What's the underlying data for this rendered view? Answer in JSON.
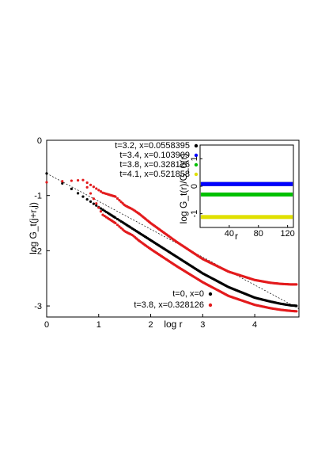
{
  "chart_data": [
    {
      "type": "scatter",
      "xlabel": "log r",
      "ylabel": "log G_t(j+r,j)",
      "xlim": [
        0,
        4.85
      ],
      "ylim": [
        -3.2,
        0
      ],
      "xticks": [
        0,
        1,
        2,
        3,
        4
      ],
      "yticks": [
        0,
        -1,
        -2,
        -3
      ],
      "legend_placement": "bottom-right",
      "series": [
        {
          "name": "t=0, x=0",
          "color": "#000000",
          "x": [
            0,
            0.301,
            0.477,
            0.602,
            0.699,
            0.778,
            0.845,
            0.903,
            0.954,
            1.0,
            1.5,
            2.0,
            2.5,
            3.0,
            3.5,
            4.0,
            4.3,
            4.5,
            4.7,
            4.85
          ],
          "y": [
            -0.6,
            -0.78,
            -0.88,
            -0.96,
            -1.02,
            -1.07,
            -1.11,
            -1.15,
            -1.18,
            -1.21,
            -1.51,
            -1.81,
            -2.11,
            -2.41,
            -2.66,
            -2.85,
            -2.92,
            -2.96,
            -2.99,
            -3.0
          ]
        },
        {
          "name": "t=3.8, x=0.328126",
          "color": "#e31a1c",
          "x": [
            0,
            0.699,
            1.079,
            1.322,
            1.505,
            1.653,
            1.778,
            2.0,
            2.5,
            3.0,
            3.5,
            4.0,
            4.3,
            4.5,
            4.7,
            4.85
          ],
          "upper_y": [
            -0.76,
            -0.72,
            -0.95,
            -1.02,
            -1.18,
            -1.25,
            -1.33,
            -1.5,
            -1.84,
            -2.15,
            -2.38,
            -2.53,
            -2.58,
            -2.6,
            -2.61,
            -2.61
          ],
          "lower_y": [
            -0.76,
            -0.72,
            -1.35,
            -1.5,
            -1.65,
            -1.72,
            -1.82,
            -1.97,
            -2.28,
            -2.57,
            -2.82,
            -2.98,
            -3.04,
            -3.07,
            -3.09,
            -3.1
          ]
        },
        {
          "name": "t=3.2, x=0.0558395",
          "color": "#000000"
        },
        {
          "name": "t=3.4, x=0.103909",
          "color": "#0000ff"
        },
        {
          "name": "t=3.8, x=0.328126",
          "color": "#00c000"
        },
        {
          "name": "t=4.1, x=0.521858",
          "color": "#e0e000"
        }
      ]
    },
    {
      "type": "line",
      "xlabel": "r",
      "ylabel": "log G_t(r)/G_0(r)",
      "xlim": [
        0,
        128
      ],
      "ylim": [
        -1.5,
        1.5
      ],
      "xticks": [
        40,
        80,
        120
      ],
      "yticks": [
        1,
        0,
        -1
      ],
      "series": [
        {
          "name": "t=3.2, x=0.0558395",
          "color": "#000000",
          "y": 0.08
        },
        {
          "name": "t=3.4, x=0.103909",
          "color": "#0000ff",
          "y": 0.08
        },
        {
          "name": "t=3.8, x=0.328126",
          "color": "#00c000",
          "y": -0.3
        },
        {
          "name": "t=4.1, x=0.521858",
          "color": "#e0e000",
          "y": -1.12
        }
      ]
    }
  ]
}
